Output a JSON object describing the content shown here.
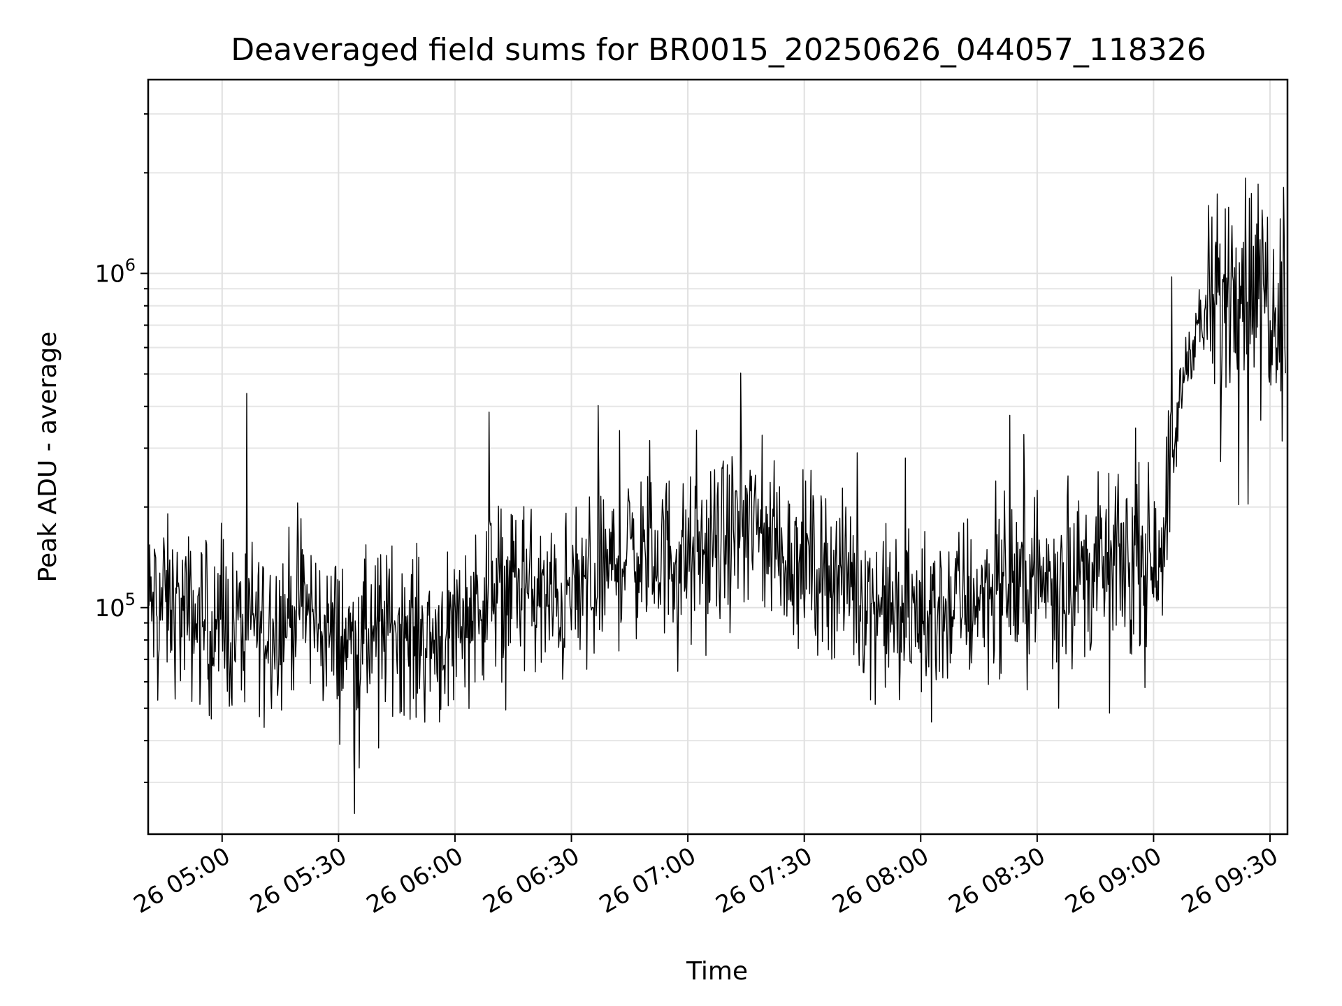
{
  "chart_data": {
    "type": "line",
    "title": "Deaveraged field sums for BR0015_20250626_044057_118326",
    "xlabel": "Time",
    "ylabel": "Peak ADU - average",
    "y_scale": "log",
    "ylim": [
      21000,
      3800000
    ],
    "xlim": [
      "2025-06-26 04:40:57",
      "2025-06-26 09:34:30"
    ],
    "x_ticks": [
      {
        "time": "2025-06-26 05:00",
        "label": "26 05:00"
      },
      {
        "time": "2025-06-26 05:30",
        "label": "26 05:30"
      },
      {
        "time": "2025-06-26 06:00",
        "label": "26 06:00"
      },
      {
        "time": "2025-06-26 06:30",
        "label": "26 06:30"
      },
      {
        "time": "2025-06-26 07:00",
        "label": "26 07:00"
      },
      {
        "time": "2025-06-26 07:30",
        "label": "26 07:30"
      },
      {
        "time": "2025-06-26 08:00",
        "label": "26 08:00"
      },
      {
        "time": "2025-06-26 08:30",
        "label": "26 08:30"
      },
      {
        "time": "2025-06-26 09:00",
        "label": "26 09:00"
      },
      {
        "time": "2025-06-26 09:30",
        "label": "26 09:30"
      }
    ],
    "y_ticks": [
      {
        "value": 100000,
        "base": "10",
        "exp": "5"
      },
      {
        "value": 1000000,
        "base": "10",
        "exp": "6"
      }
    ],
    "grid": true,
    "legend": "none",
    "line_color": "#000000",
    "series": [
      {
        "x": [
          "2025-06-26 04:41",
          "2025-06-26 04:45",
          "2025-06-26 04:50",
          "2025-06-26 04:55",
          "2025-06-26 05:00",
          "2025-06-26 05:05",
          "2025-06-26 05:10",
          "2025-06-26 05:15",
          "2025-06-26 05:20",
          "2025-06-26 05:25",
          "2025-06-26 05:30",
          "2025-06-26 05:35",
          "2025-06-26 05:40",
          "2025-06-26 05:45",
          "2025-06-26 05:50",
          "2025-06-26 05:55",
          "2025-06-26 06:00",
          "2025-06-26 06:05",
          "2025-06-26 06:10",
          "2025-06-26 06:15",
          "2025-06-26 06:20",
          "2025-06-26 06:25",
          "2025-06-26 06:30",
          "2025-06-26 06:35",
          "2025-06-26 06:40",
          "2025-06-26 06:45",
          "2025-06-26 06:50",
          "2025-06-26 06:55",
          "2025-06-26 07:00",
          "2025-06-26 07:05",
          "2025-06-26 07:10",
          "2025-06-26 07:15",
          "2025-06-26 07:20",
          "2025-06-26 07:25",
          "2025-06-26 07:30",
          "2025-06-26 07:35",
          "2025-06-26 07:40",
          "2025-06-26 07:45",
          "2025-06-26 07:50",
          "2025-06-26 07:55",
          "2025-06-26 08:00",
          "2025-06-26 08:05",
          "2025-06-26 08:10",
          "2025-06-26 08:15",
          "2025-06-26 08:20",
          "2025-06-26 08:25",
          "2025-06-26 08:30",
          "2025-06-26 08:35",
          "2025-06-26 08:40",
          "2025-06-26 08:45",
          "2025-06-26 08:50",
          "2025-06-26 08:55",
          "2025-06-26 09:00",
          "2025-06-26 09:02",
          "2025-06-26 09:04",
          "2025-06-26 09:06",
          "2025-06-26 09:08",
          "2025-06-26 09:10",
          "2025-06-26 09:12",
          "2025-06-26 09:14",
          "2025-06-26 09:16",
          "2025-06-26 09:18",
          "2025-06-26 09:20",
          "2025-06-26 09:22",
          "2025-06-26 09:24",
          "2025-06-26 09:26",
          "2025-06-26 09:28",
          "2025-06-26 09:30",
          "2025-06-26 09:32",
          "2025-06-26 09:34"
        ],
        "values": [
          100000,
          105000,
          95000,
          90000,
          85000,
          88000,
          92000,
          90000,
          105000,
          88000,
          80000,
          78000,
          84000,
          90000,
          82000,
          80000,
          90000,
          100000,
          115000,
          120000,
          110000,
          100000,
          108000,
          120000,
          130000,
          150000,
          140000,
          145000,
          135000,
          145000,
          160000,
          175000,
          165000,
          145000,
          140000,
          130000,
          125000,
          110000,
          100000,
          95000,
          95000,
          98000,
          105000,
          110000,
          115000,
          118000,
          120000,
          122000,
          125000,
          130000,
          135000,
          140000,
          145000,
          160000,
          230000,
          350000,
          520000,
          650000,
          700000,
          740000,
          780000,
          820000,
          1000000,
          1050000,
          950000,
          900000,
          920000,
          880000,
          850000,
          700000
        ]
      }
    ]
  }
}
